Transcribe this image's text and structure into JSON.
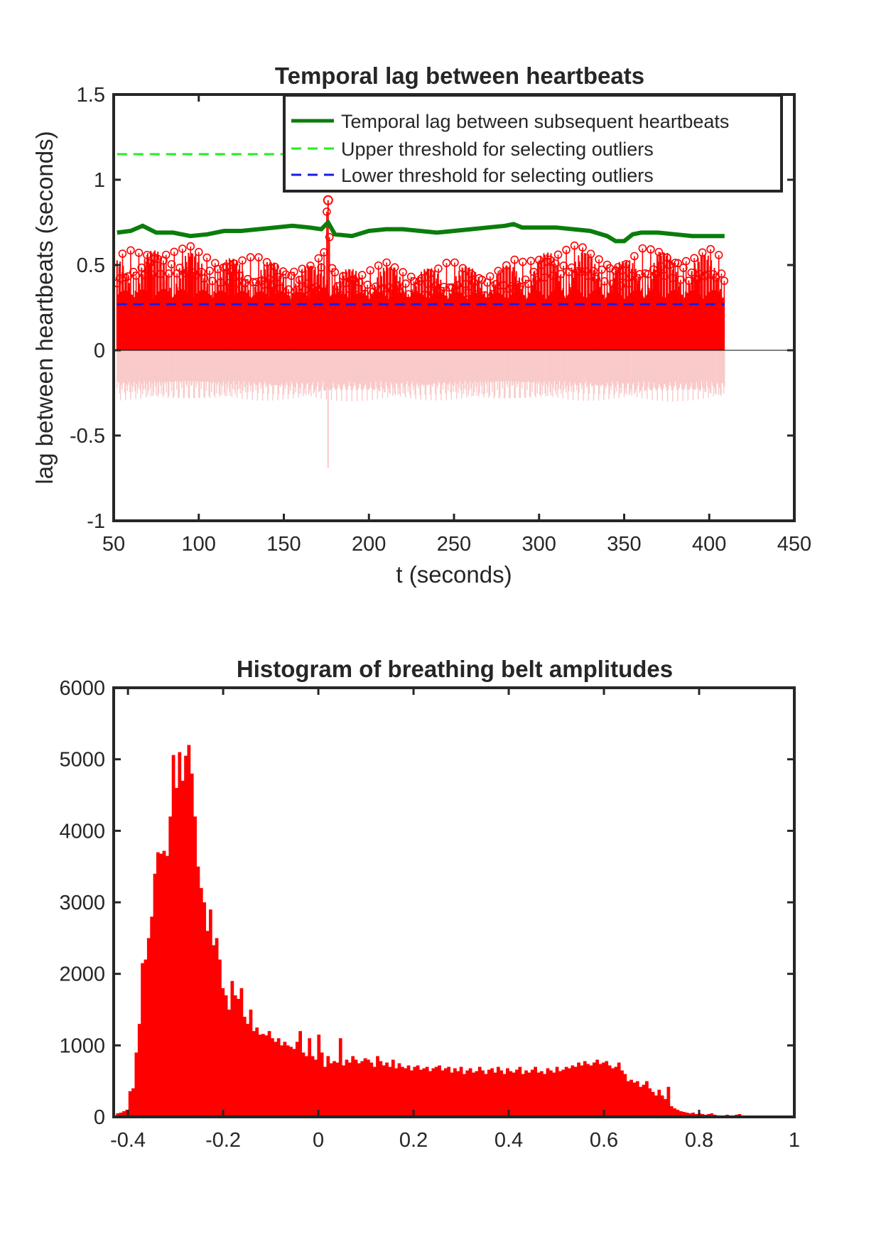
{
  "chart_data": [
    {
      "type": "line",
      "title": "Temporal lag between heartbeats",
      "xlabel": "t (seconds)",
      "ylabel": "lag between heartbeats (seconds)",
      "xlim": [
        50,
        450
      ],
      "ylim": [
        -1,
        1.5
      ],
      "xticks": [
        50,
        100,
        150,
        200,
        250,
        300,
        350,
        400,
        450
      ],
      "yticks": [
        -1,
        -0.5,
        0,
        0.5,
        1,
        1.5
      ],
      "xtick_labels": [
        "50",
        "100",
        "150",
        "200",
        "250",
        "300",
        "350",
        "400",
        "450"
      ],
      "ytick_labels": [
        "-1",
        "-0.5",
        "0",
        "0.5",
        "1",
        "1.5"
      ],
      "legend_position": "top-right",
      "grid": false,
      "series": [
        {
          "name": "Temporal lag between subsequent heartbeats",
          "style": "solid",
          "color": "#0a7d0a",
          "x": [
            52,
            60,
            67,
            75,
            85,
            95,
            105,
            115,
            125,
            135,
            145,
            155,
            165,
            172,
            176,
            180,
            190,
            200,
            210,
            220,
            230,
            240,
            250,
            260,
            270,
            280,
            285,
            290,
            300,
            310,
            320,
            330,
            340,
            345,
            350,
            355,
            360,
            370,
            380,
            390,
            400,
            409
          ],
          "y": [
            0.69,
            0.7,
            0.73,
            0.69,
            0.69,
            0.67,
            0.68,
            0.7,
            0.7,
            0.71,
            0.72,
            0.73,
            0.72,
            0.71,
            0.75,
            0.68,
            0.67,
            0.7,
            0.71,
            0.71,
            0.7,
            0.69,
            0.7,
            0.71,
            0.72,
            0.73,
            0.74,
            0.72,
            0.72,
            0.72,
            0.71,
            0.7,
            0.67,
            0.64,
            0.64,
            0.68,
            0.69,
            0.69,
            0.68,
            0.67,
            0.67,
            0.67
          ]
        },
        {
          "name": "Upper threshold for selecting outliers",
          "style": "dashed",
          "color": "#22ee22",
          "x": [
            52,
            409
          ],
          "y": [
            1.15,
            1.15
          ]
        },
        {
          "name": "Lower threshold for selecting outliers",
          "style": "dashed",
          "color": "#1a1ae6",
          "x": [
            52,
            409
          ],
          "y": [
            0.27,
            0.27
          ]
        }
      ],
      "stems": {
        "color": "#ff0000",
        "marker": "circle",
        "x_range": [
          52,
          409
        ],
        "peak_envelope": {
          "x": [
            52,
            60,
            70,
            80,
            90,
            100,
            110,
            120,
            130,
            140,
            150,
            160,
            170,
            176,
            180,
            190,
            200,
            210,
            220,
            230,
            240,
            250,
            260,
            270,
            280,
            290,
            300,
            310,
            320,
            330,
            340,
            350,
            360,
            370,
            380,
            390,
            400,
            409
          ],
          "y": [
            0.56,
            0.6,
            0.62,
            0.63,
            0.62,
            0.6,
            0.58,
            0.57,
            0.56,
            0.55,
            0.54,
            0.53,
            0.52,
            0.88,
            0.5,
            0.5,
            0.51,
            0.52,
            0.51,
            0.5,
            0.51,
            0.53,
            0.51,
            0.5,
            0.52,
            0.54,
            0.6,
            0.62,
            0.63,
            0.6,
            0.58,
            0.55,
            0.6,
            0.62,
            0.6,
            0.58,
            0.6,
            0.58
          ]
        }
      },
      "negative_stems": {
        "color": "#f9c9c9",
        "x_range": [
          52,
          409
        ],
        "typical_min": -0.3,
        "spike": {
          "x": 176,
          "y": -0.69
        }
      }
    },
    {
      "type": "bar",
      "title": "Histogram of breathing belt amplitudes",
      "xlabel": "",
      "ylabel": "",
      "xlim": [
        -0.43,
        1.0
      ],
      "ylim": [
        0,
        6000
      ],
      "xticks": [
        -0.4,
        -0.2,
        0,
        0.2,
        0.4,
        0.6,
        0.8,
        1
      ],
      "yticks": [
        0,
        1000,
        2000,
        3000,
        4000,
        5000,
        6000
      ],
      "xtick_labels": [
        "-0.4",
        "-0.2",
        "0",
        "0.2",
        "0.4",
        "0.6",
        "0.8",
        "1"
      ],
      "ytick_labels": [
        "0",
        "1000",
        "2000",
        "3000",
        "4000",
        "5000",
        "6000"
      ],
      "color": "#ff0000",
      "bin_start": -0.425,
      "bin_width": 0.0065,
      "values": [
        50,
        60,
        80,
        100,
        360,
        400,
        900,
        1300,
        2150,
        2200,
        2500,
        2800,
        3400,
        3700,
        3680,
        3720,
        3650,
        4200,
        5060,
        4600,
        5100,
        4700,
        5050,
        5200,
        4800,
        4200,
        3500,
        3200,
        3000,
        2600,
        2900,
        2400,
        2500,
        2200,
        1800,
        1700,
        1500,
        1900,
        1700,
        1650,
        1800,
        1400,
        1300,
        1500,
        1200,
        1250,
        1150,
        1160,
        1140,
        1200,
        1100,
        1050,
        1100,
        1000,
        1050,
        1000,
        980,
        950,
        1050,
        1200,
        900,
        850,
        1100,
        850,
        800,
        1150,
        900,
        700,
        850,
        750,
        780,
        760,
        1100,
        720,
        800,
        760,
        850,
        800,
        750,
        780,
        820,
        800,
        760,
        700,
        850,
        780,
        720,
        760,
        700,
        800,
        680,
        750,
        700,
        680,
        720,
        650,
        700,
        720,
        660,
        680,
        700,
        640,
        680,
        700,
        720,
        650,
        680,
        700,
        620,
        680,
        640,
        700,
        600,
        650,
        680,
        620,
        640,
        700,
        650,
        600,
        660,
        680,
        620,
        700,
        650,
        600,
        680,
        640,
        620,
        660,
        700,
        600,
        650,
        620,
        660,
        700,
        620,
        640,
        600,
        680,
        650,
        620,
        700,
        640,
        660,
        700,
        680,
        720,
        700,
        760,
        720,
        780,
        740,
        720,
        760,
        800,
        740,
        760,
        780,
        720,
        680,
        700,
        760,
        650,
        600,
        500,
        520,
        480,
        500,
        420,
        450,
        500,
        400,
        350,
        300,
        380,
        300,
        250,
        420,
        150,
        120,
        100,
        80,
        70,
        60,
        50,
        60,
        40,
        50,
        40,
        30,
        40,
        50,
        30,
        20,
        10,
        20,
        30,
        10,
        20,
        30,
        40,
        20,
        10
      ]
    }
  ]
}
